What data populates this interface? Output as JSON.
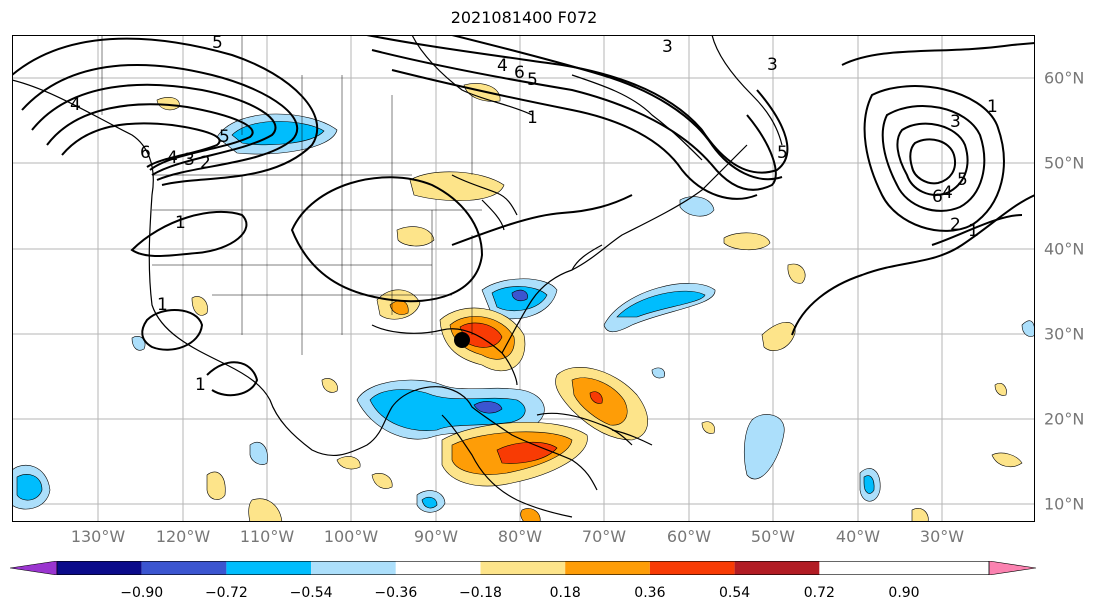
{
  "title": "2021081400 F072",
  "map": {
    "projection": "equirectangular",
    "lon_ticks": [
      "130°W",
      "120°W",
      "110°W",
      "100°W",
      "90°W",
      "80°W",
      "70°W",
      "60°W",
      "50°W",
      "40°W",
      "30°W"
    ],
    "lat_ticks": [
      "60°N",
      "50°N",
      "40°N",
      "30°N",
      "20°N",
      "10°N"
    ],
    "gridlines": true,
    "contour_labels": [
      "5",
      "3",
      "4",
      "6",
      "5",
      "4",
      "6",
      "4",
      "3",
      "2",
      "5",
      "1",
      "1",
      "1",
      "1",
      "3",
      "5",
      "1",
      "3",
      "6",
      "4",
      "2",
      "5",
      "1"
    ],
    "marker": "black dot near 30°N 87°W"
  },
  "colorbar": {
    "ticks": [
      "−0.90",
      "−0.72",
      "−0.54",
      "−0.36",
      "−0.18",
      "0.18",
      "0.36",
      "0.54",
      "0.72",
      "0.90"
    ],
    "colors": [
      "#9a35cf",
      "#0b0b8a",
      "#3b55d0",
      "#00bdfd",
      "#acdffb",
      "#ffffff",
      "#fde48a",
      "#fe9d07",
      "#f83b04",
      "#b21c24",
      "#fb82b0"
    ],
    "extend": "both"
  }
}
